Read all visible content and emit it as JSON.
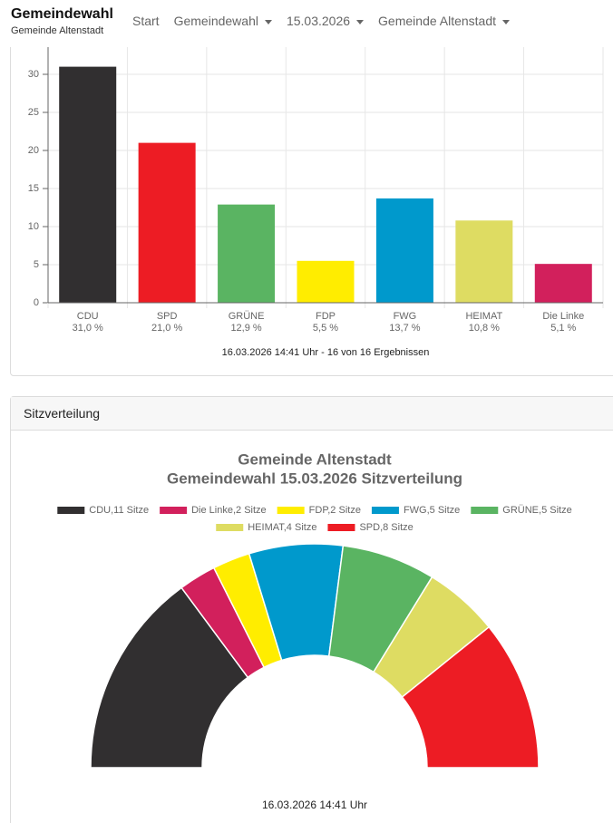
{
  "navbar": {
    "brand": "Gemeindewahl",
    "subtitle": "Gemeinde Altenstadt",
    "items": [
      "Start",
      "Gemeindewahl",
      "15.03.2026",
      "Gemeinde Altenstadt"
    ]
  },
  "chart_data": [
    {
      "type": "bar",
      "categories": [
        "CDU",
        "SPD",
        "GRÜNE",
        "FDP",
        "FWG",
        "HEIMAT",
        "Die Linke"
      ],
      "values": [
        31.0,
        21.0,
        12.9,
        5.5,
        13.7,
        10.8,
        5.1
      ],
      "value_labels": [
        "31,0 %",
        "21,0 %",
        "12,9 %",
        "5,5 %",
        "13,7 %",
        "10,8 %",
        "5,1 %"
      ],
      "colors": [
        "#312f30",
        "#ed1c24",
        "#5ab462",
        "#ffed00",
        "#0099cc",
        "#dedc62",
        "#d2205c"
      ],
      "ylim": [
        0,
        35
      ],
      "yticks": [
        0,
        5,
        10,
        15,
        20,
        25,
        30
      ],
      "grid": true,
      "footnote": "16.03.2026 14:41 Uhr - 16 von 16 Ergebnissen"
    },
    {
      "type": "semi_donut",
      "panel_title": "Sitzverteilung",
      "title": [
        "Gemeinde Altenstadt",
        "Gemeindewahl 15.03.2026 Sitzverteilung"
      ],
      "categories": [
        "CDU",
        "Die Linke",
        "FDP",
        "FWG",
        "GRÜNE",
        "HEIMAT",
        "SPD"
      ],
      "values": [
        11,
        2,
        2,
        5,
        5,
        4,
        8
      ],
      "value_labels": [
        "CDU,11 Sitze",
        "Die Linke,2 Sitze",
        "FDP,2 Sitze",
        "FWG,5 Sitze",
        "GRÜNE,5 Sitze",
        "HEIMAT,4 Sitze",
        "SPD,8 Sitze"
      ],
      "colors": [
        "#312f30",
        "#d2205c",
        "#ffed00",
        "#0099cc",
        "#5ab462",
        "#dedc62",
        "#ed1c24"
      ],
      "footnote": "16.03.2026 14:41 Uhr"
    }
  ]
}
